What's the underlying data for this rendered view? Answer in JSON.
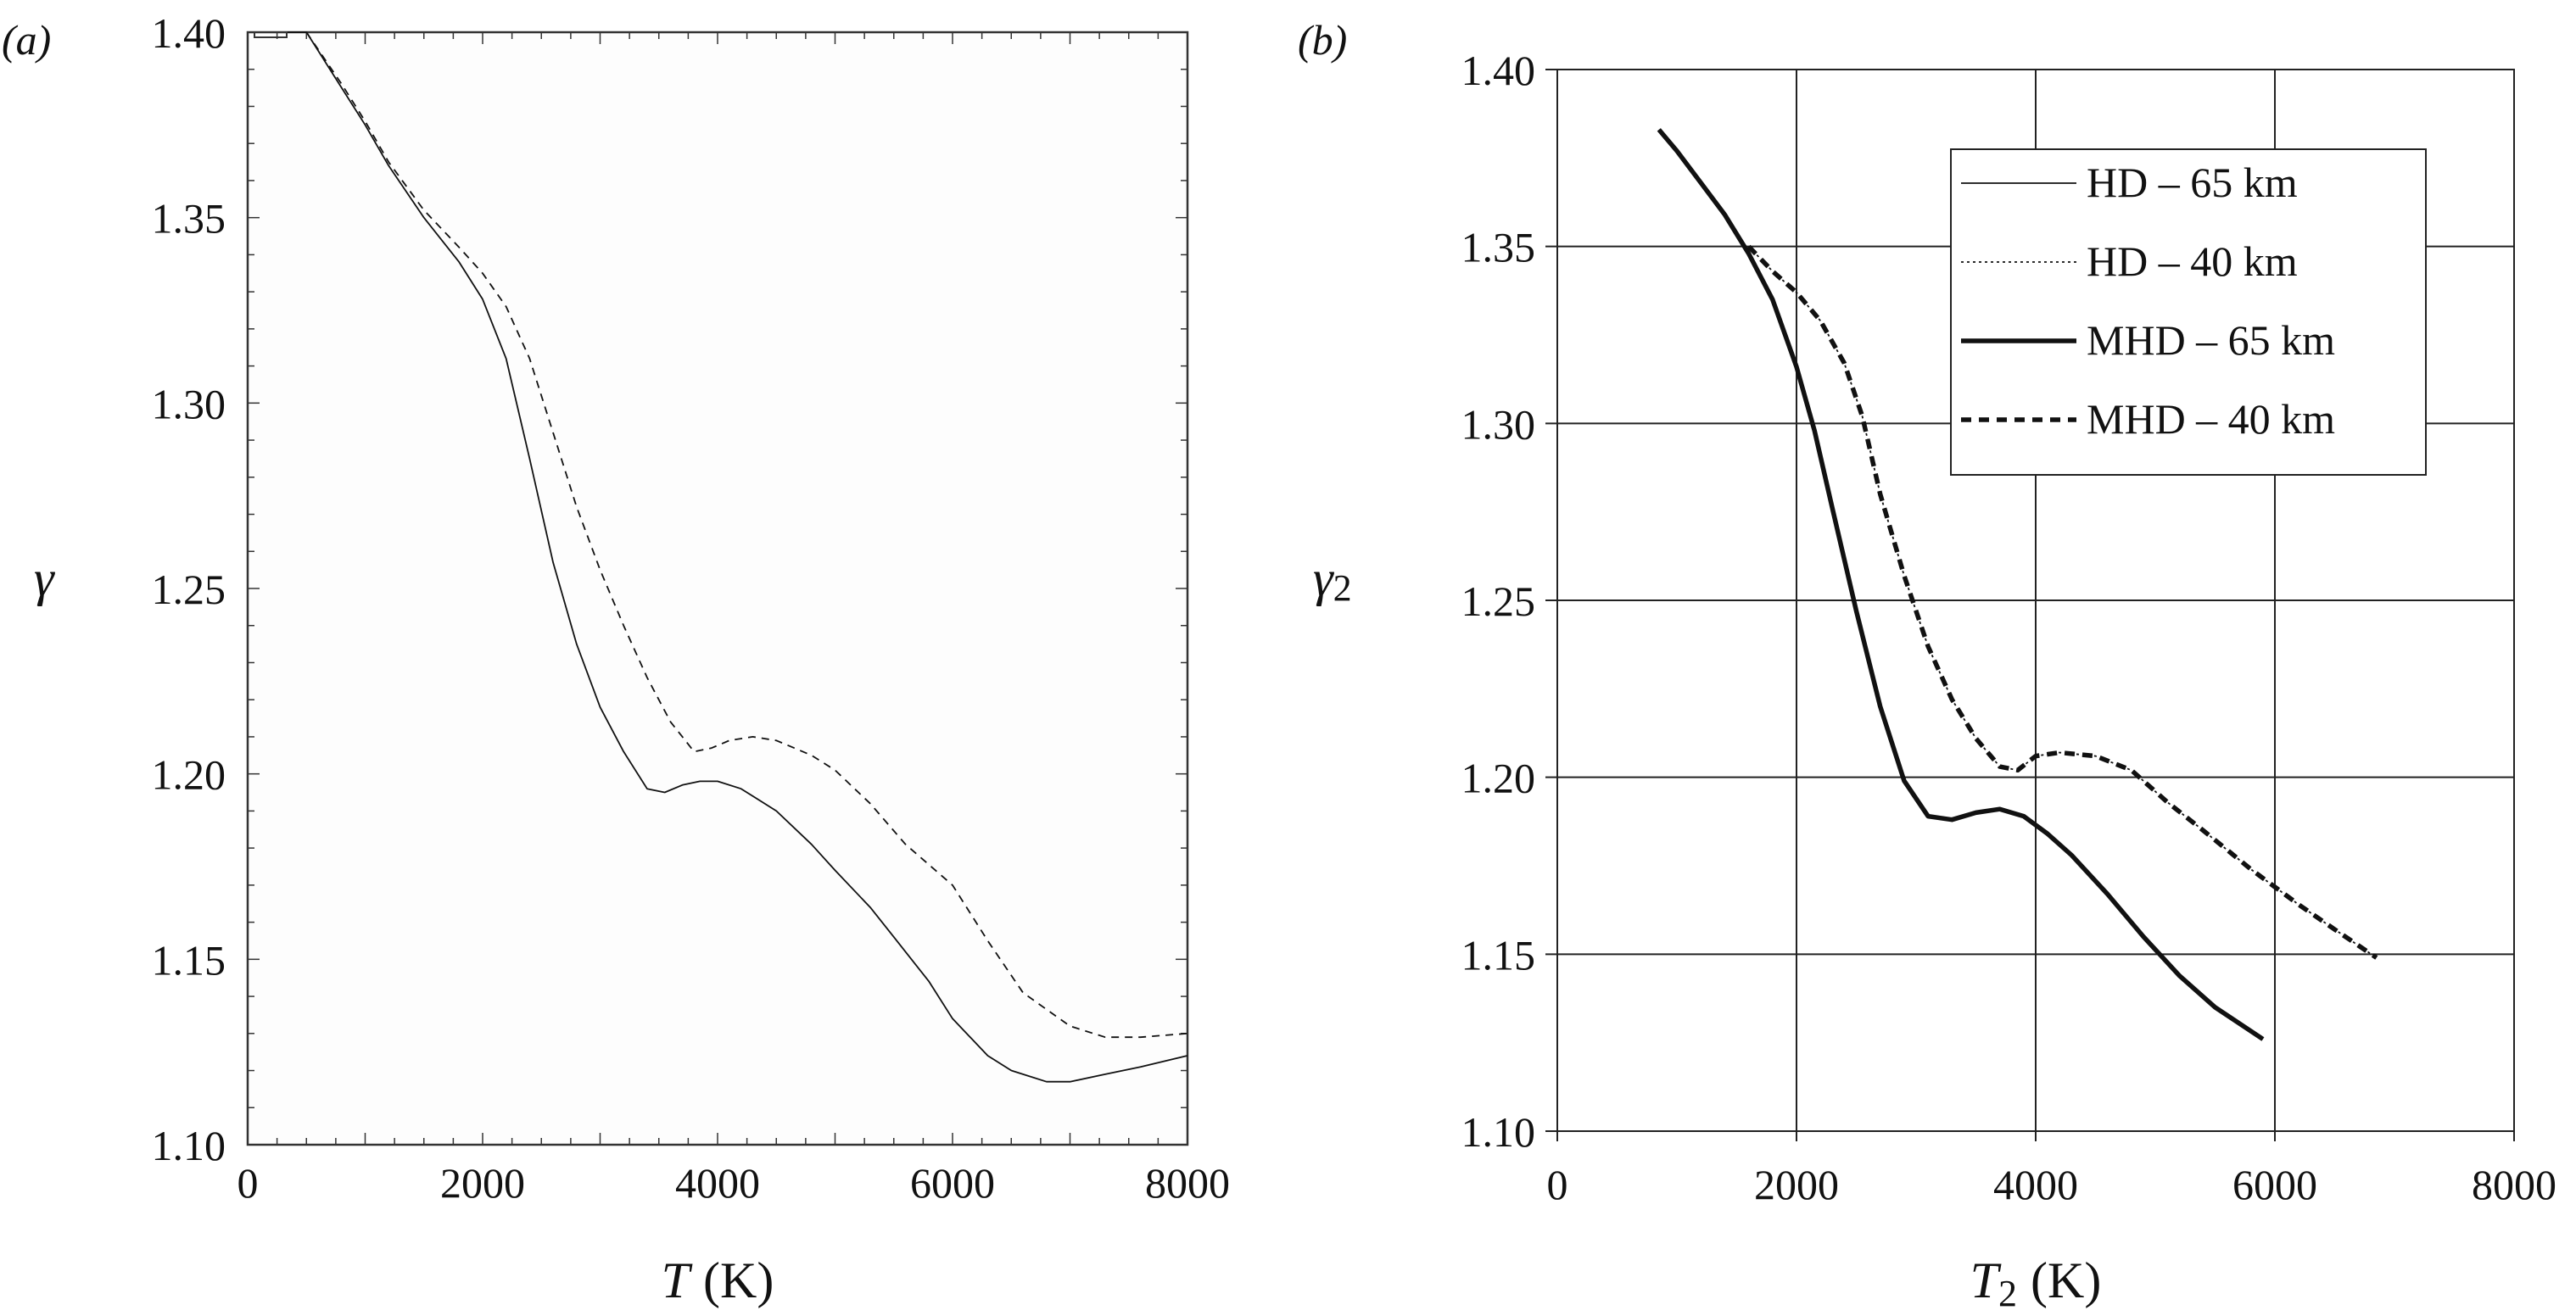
{
  "chart_data": [
    {
      "panel_label": "(a)",
      "type": "line",
      "xlabel_symbol": "T",
      "xlabel_unit": "(K)",
      "ylabel_symbol": "γ",
      "xlim": [
        0,
        8000
      ],
      "ylim": [
        1.1,
        1.4
      ],
      "x_ticks": [
        "0",
        "2000",
        "4000",
        "6000",
        "8000"
      ],
      "y_ticks": [
        "1.10",
        "1.15",
        "1.20",
        "1.25",
        "1.30",
        "1.35",
        "1.40"
      ],
      "grid": false,
      "series": [
        {
          "style": "solid-thin",
          "points": [
            [
              250,
              1.4
            ],
            [
              500,
              1.4
            ],
            [
              800,
              1.385
            ],
            [
              1000,
              1.375
            ],
            [
              1200,
              1.364
            ],
            [
              1500,
              1.35
            ],
            [
              1800,
              1.338
            ],
            [
              2000,
              1.328
            ],
            [
              2200,
              1.312
            ],
            [
              2400,
              1.285
            ],
            [
              2600,
              1.257
            ],
            [
              2800,
              1.235
            ],
            [
              3000,
              1.218
            ],
            [
              3200,
              1.206
            ],
            [
              3400,
              1.196
            ],
            [
              3550,
              1.195
            ],
            [
              3700,
              1.197
            ],
            [
              3850,
              1.198
            ],
            [
              4000,
              1.198
            ],
            [
              4200,
              1.196
            ],
            [
              4500,
              1.19
            ],
            [
              4800,
              1.181
            ],
            [
              5000,
              1.174
            ],
            [
              5300,
              1.164
            ],
            [
              5500,
              1.156
            ],
            [
              5800,
              1.144
            ],
            [
              6000,
              1.134
            ],
            [
              6300,
              1.124
            ],
            [
              6500,
              1.12
            ],
            [
              6800,
              1.117
            ],
            [
              7000,
              1.117
            ],
            [
              7300,
              1.119
            ],
            [
              7600,
              1.121
            ],
            [
              8000,
              1.124
            ]
          ]
        },
        {
          "style": "dashed-thin",
          "points": [
            [
              500,
              1.4
            ],
            [
              800,
              1.386
            ],
            [
              1000,
              1.376
            ],
            [
              1200,
              1.365
            ],
            [
              1500,
              1.352
            ],
            [
              1800,
              1.342
            ],
            [
              2000,
              1.335
            ],
            [
              2200,
              1.326
            ],
            [
              2400,
              1.312
            ],
            [
              2600,
              1.292
            ],
            [
              2800,
              1.272
            ],
            [
              3000,
              1.255
            ],
            [
              3200,
              1.24
            ],
            [
              3400,
              1.226
            ],
            [
              3600,
              1.214
            ],
            [
              3800,
              1.206
            ],
            [
              3950,
              1.207
            ],
            [
              4100,
              1.209
            ],
            [
              4300,
              1.21
            ],
            [
              4500,
              1.209
            ],
            [
              4800,
              1.205
            ],
            [
              5000,
              1.201
            ],
            [
              5300,
              1.192
            ],
            [
              5600,
              1.181
            ],
            [
              6000,
              1.17
            ],
            [
              6300,
              1.155
            ],
            [
              6600,
              1.141
            ],
            [
              7000,
              1.132
            ],
            [
              7300,
              1.129
            ],
            [
              7600,
              1.129
            ],
            [
              8000,
              1.13
            ]
          ]
        }
      ]
    },
    {
      "panel_label": "(b)",
      "type": "line",
      "xlabel_symbol": "T",
      "xlabel_subscript": "2",
      "xlabel_unit": "(K)",
      "ylabel_symbol": "γ",
      "ylabel_subscript": "2",
      "xlim": [
        0,
        8000
      ],
      "ylim": [
        1.1,
        1.4
      ],
      "x_ticks": [
        "0",
        "2000",
        "4000",
        "6000",
        "8000"
      ],
      "y_ticks": [
        "1.10",
        "1.15",
        "1.20",
        "1.25",
        "1.30",
        "1.35",
        "1.40"
      ],
      "grid": true,
      "legend_position": "top-right",
      "series": [
        {
          "name": "HD – 65 km",
          "style": "solid-thin",
          "points": [
            [
              850,
              1.383
            ],
            [
              1000,
              1.377
            ],
            [
              1200,
              1.368
            ],
            [
              1400,
              1.359
            ],
            [
              1600,
              1.348
            ],
            [
              1800,
              1.335
            ],
            [
              2000,
              1.316
            ],
            [
              2150,
              1.298
            ],
            [
              2300,
              1.276
            ],
            [
              2500,
              1.247
            ],
            [
              2700,
              1.22
            ],
            [
              2900,
              1.199
            ],
            [
              3100,
              1.189
            ],
            [
              3300,
              1.188
            ],
            [
              3500,
              1.19
            ],
            [
              3700,
              1.191
            ],
            [
              3900,
              1.189
            ],
            [
              4100,
              1.184
            ],
            [
              4300,
              1.178
            ],
            [
              4600,
              1.167
            ],
            [
              4900,
              1.155
            ],
            [
              5200,
              1.144
            ],
            [
              5500,
              1.135
            ],
            [
              5900,
              1.126
            ]
          ]
        },
        {
          "name": "HD – 40 km",
          "style": "dotted-thin",
          "points": [
            [
              1600,
              1.35
            ],
            [
              1800,
              1.343
            ],
            [
              2000,
              1.337
            ],
            [
              2200,
              1.329
            ],
            [
              2400,
              1.317
            ],
            [
              2550,
              1.302
            ],
            [
              2700,
              1.28
            ],
            [
              2900,
              1.257
            ],
            [
              3100,
              1.237
            ],
            [
              3300,
              1.222
            ],
            [
              3500,
              1.211
            ],
            [
              3700,
              1.203
            ],
            [
              3850,
              1.202
            ],
            [
              4000,
              1.206
            ],
            [
              4200,
              1.207
            ],
            [
              4500,
              1.206
            ],
            [
              4800,
              1.202
            ],
            [
              5100,
              1.193
            ],
            [
              5400,
              1.185
            ],
            [
              5800,
              1.174
            ],
            [
              6200,
              1.164
            ],
            [
              6500,
              1.157
            ],
            [
              6850,
              1.149
            ]
          ]
        },
        {
          "name": "MHD – 65 km",
          "style": "solid-thick",
          "points": [
            [
              850,
              1.383
            ],
            [
              1000,
              1.377
            ],
            [
              1200,
              1.368
            ],
            [
              1400,
              1.359
            ],
            [
              1600,
              1.348
            ],
            [
              1800,
              1.335
            ],
            [
              2000,
              1.316
            ],
            [
              2150,
              1.298
            ],
            [
              2300,
              1.276
            ],
            [
              2500,
              1.247
            ],
            [
              2700,
              1.22
            ],
            [
              2900,
              1.199
            ],
            [
              3100,
              1.189
            ],
            [
              3300,
              1.188
            ],
            [
              3500,
              1.19
            ],
            [
              3700,
              1.191
            ],
            [
              3900,
              1.189
            ],
            [
              4100,
              1.184
            ],
            [
              4300,
              1.178
            ],
            [
              4600,
              1.167
            ],
            [
              4900,
              1.155
            ],
            [
              5200,
              1.144
            ],
            [
              5500,
              1.135
            ],
            [
              5900,
              1.126
            ]
          ]
        },
        {
          "name": "MHD – 40 km",
          "style": "dashed-thick",
          "points": [
            [
              1600,
              1.35
            ],
            [
              1800,
              1.343
            ],
            [
              2000,
              1.337
            ],
            [
              2200,
              1.329
            ],
            [
              2400,
              1.317
            ],
            [
              2550,
              1.302
            ],
            [
              2700,
              1.28
            ],
            [
              2900,
              1.257
            ],
            [
              3100,
              1.237
            ],
            [
              3300,
              1.222
            ],
            [
              3500,
              1.211
            ],
            [
              3700,
              1.203
            ],
            [
              3850,
              1.202
            ],
            [
              4000,
              1.206
            ],
            [
              4200,
              1.207
            ],
            [
              4500,
              1.206
            ],
            [
              4800,
              1.202
            ],
            [
              5100,
              1.193
            ],
            [
              5400,
              1.185
            ],
            [
              5800,
              1.174
            ],
            [
              6200,
              1.164
            ],
            [
              6500,
              1.157
            ],
            [
              6850,
              1.149
            ]
          ]
        }
      ]
    }
  ]
}
